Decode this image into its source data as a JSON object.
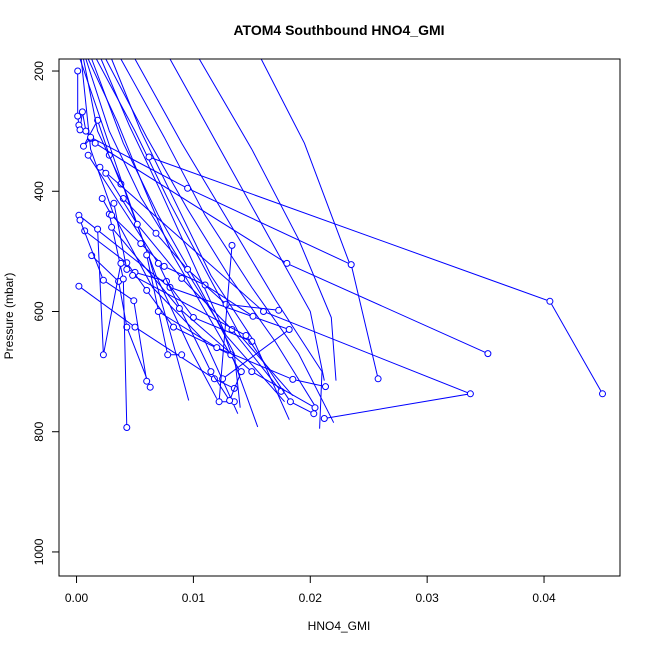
{
  "chart_data": {
    "type": "line",
    "title": "ATOM4 Southbound HNO4_GMI",
    "xlabel": "HNO4_GMI",
    "ylabel": "Pressure (mbar)",
    "xlim": [
      -0.0015,
      0.0465
    ],
    "ylim": [
      1040,
      180
    ],
    "y_reversed": true,
    "xticks": [
      0.0,
      0.01,
      0.02,
      0.03,
      0.04
    ],
    "xtick_labels": [
      "0.00",
      "0.01",
      "0.02",
      "0.03",
      "0.04"
    ],
    "yticks": [
      200,
      400,
      600,
      800,
      1000
    ],
    "ytick_labels": [
      "200",
      "400",
      "600",
      "800",
      "1000"
    ],
    "grid": false,
    "series_color": "#0000ff",
    "series": [
      {
        "marker": "circle",
        "points": [
          [
            0.0001,
            200
          ],
          [
            0.0001,
            275
          ],
          [
            0.0002,
            290
          ],
          [
            0.0003,
            298
          ],
          [
            0.0005,
            268
          ],
          [
            0.0008,
            300
          ],
          [
            0.0012,
            312
          ],
          [
            0.0006,
            325
          ],
          [
            0.0018,
            282
          ],
          [
            0.0028,
            340
          ],
          [
            0.0038,
            388
          ]
        ]
      },
      {
        "marker": "none",
        "points": [
          [
            0.0003,
            180
          ],
          [
            0.0024,
            300
          ],
          [
            0.0045,
            420
          ],
          [
            0.0068,
            540
          ],
          [
            0.0098,
            665
          ],
          [
            0.012,
            745
          ]
        ]
      },
      {
        "marker": "none",
        "points": [
          [
            0.001,
            180
          ],
          [
            0.0035,
            285
          ],
          [
            0.0058,
            395
          ],
          [
            0.0082,
            505
          ],
          [
            0.0112,
            605
          ],
          [
            0.014,
            700
          ]
        ]
      },
      {
        "marker": "none",
        "points": [
          [
            0.0017,
            180
          ],
          [
            0.005,
            300
          ],
          [
            0.008,
            420
          ],
          [
            0.011,
            530
          ],
          [
            0.014,
            640
          ],
          [
            0.0185,
            740
          ]
        ]
      },
      {
        "marker": "none",
        "points": [
          [
            0.0025,
            180
          ],
          [
            0.006,
            310
          ],
          [
            0.0095,
            430
          ],
          [
            0.013,
            540
          ],
          [
            0.017,
            650
          ],
          [
            0.0205,
            760
          ]
        ]
      },
      {
        "marker": "none",
        "points": [
          [
            0.0038,
            180
          ],
          [
            0.0075,
            310
          ],
          [
            0.011,
            440
          ],
          [
            0.015,
            560
          ],
          [
            0.019,
            670
          ],
          [
            0.022,
            785
          ]
        ]
      },
      {
        "marker": "none",
        "points": [
          [
            0.005,
            180
          ],
          [
            0.009,
            320
          ],
          [
            0.013,
            450
          ],
          [
            0.017,
            580
          ],
          [
            0.021,
            700
          ],
          [
            0.0208,
            795
          ]
        ]
      },
      {
        "marker": "none",
        "points": [
          [
            0.008,
            180
          ],
          [
            0.012,
            320
          ],
          [
            0.016,
            460
          ],
          [
            0.02,
            600
          ],
          [
            0.0212,
            715
          ]
        ]
      },
      {
        "marker": "none",
        "points": [
          [
            0.0105,
            180
          ],
          [
            0.015,
            330
          ],
          [
            0.019,
            480
          ],
          [
            0.0218,
            610
          ],
          [
            0.0222,
            715
          ]
        ]
      },
      {
        "marker": "none",
        "points": [
          [
            0.0158,
            180
          ],
          [
            0.0195,
            320
          ],
          [
            0.0234,
            522
          ]
        ]
      },
      {
        "marker": "none",
        "points": [
          [
            0.0004,
            180
          ],
          [
            0.0012,
            330
          ],
          [
            0.0032,
            440
          ],
          [
            0.0065,
            560
          ],
          [
            0.011,
            650
          ],
          [
            0.0138,
            770
          ]
        ]
      },
      {
        "marker": "none",
        "points": [
          [
            0.0008,
            180
          ],
          [
            0.0028,
            300
          ],
          [
            0.0055,
            410
          ],
          [
            0.009,
            520
          ],
          [
            0.0125,
            630
          ],
          [
            0.0155,
            792
          ]
        ]
      },
      {
        "marker": "none",
        "points": [
          [
            0.0013,
            180
          ],
          [
            0.004,
            320
          ],
          [
            0.007,
            440
          ],
          [
            0.0105,
            560
          ],
          [
            0.0135,
            670
          ],
          [
            0.014,
            760
          ]
        ]
      },
      {
        "marker": "none",
        "points": [
          [
            0.0021,
            180
          ],
          [
            0.0045,
            290
          ],
          [
            0.0072,
            400
          ],
          [
            0.01,
            520
          ],
          [
            0.0128,
            640
          ],
          [
            0.0178,
            750
          ]
        ]
      },
      {
        "marker": "none",
        "points": [
          [
            0.003,
            180
          ],
          [
            0.0055,
            300
          ],
          [
            0.0085,
            420
          ],
          [
            0.0115,
            540
          ],
          [
            0.0152,
            650
          ],
          [
            0.0182,
            780
          ]
        ]
      },
      {
        "marker": "none",
        "points": [
          [
            0.0006,
            180
          ],
          [
            0.0018,
            300
          ],
          [
            0.0042,
            400
          ],
          [
            0.0062,
            510
          ],
          [
            0.0078,
            620
          ],
          [
            0.0096,
            748
          ]
        ]
      },
      {
        "marker": "circle",
        "points": [
          [
            0.0012,
            310
          ],
          [
            0.0095,
            395
          ],
          [
            0.0235,
            522
          ],
          [
            0.0258,
            712
          ]
        ]
      },
      {
        "marker": "circle",
        "points": [
          [
            0.0062,
            343
          ],
          [
            0.0405,
            583
          ],
          [
            0.045,
            737
          ]
        ]
      },
      {
        "marker": "circle",
        "points": [
          [
            0.0016,
            320
          ],
          [
            0.018,
            520
          ],
          [
            0.0352,
            670
          ]
        ]
      },
      {
        "marker": "circle",
        "points": [
          [
            0.002,
            360
          ],
          [
            0.016,
            600
          ],
          [
            0.0337,
            737
          ],
          [
            0.0212,
            778
          ]
        ]
      },
      {
        "marker": "circle",
        "points": [
          [
            0.0002,
            440
          ],
          [
            0.008,
            560
          ],
          [
            0.0182,
            630
          ],
          [
            0.0125,
            712
          ]
        ]
      },
      {
        "marker": "circle",
        "points": [
          [
            0.0002,
            558
          ],
          [
            0.005,
            626
          ],
          [
            0.0118,
            712
          ],
          [
            0.0135,
            728
          ]
        ]
      },
      {
        "marker": "circle",
        "points": [
          [
            0.0007,
            466
          ],
          [
            0.0043,
            519
          ],
          [
            0.006,
            565
          ],
          [
            0.0083,
            626
          ],
          [
            0.0132,
            672
          ]
        ]
      },
      {
        "marker": "circle",
        "points": [
          [
            0.0013,
            507
          ],
          [
            0.0036,
            550
          ],
          [
            0.0043,
            626
          ],
          [
            0.0063,
            726
          ]
        ]
      },
      {
        "marker": "circle",
        "points": [
          [
            0.0028,
            438
          ],
          [
            0.004,
            546
          ],
          [
            0.0043,
            793
          ]
        ]
      },
      {
        "marker": "circle",
        "points": [
          [
            0.0003,
            448
          ],
          [
            0.0023,
            548
          ],
          [
            0.0049,
            582
          ],
          [
            0.006,
            716
          ]
        ]
      },
      {
        "marker": "circle",
        "points": [
          [
            0.0022,
            412
          ],
          [
            0.003,
            440
          ],
          [
            0.0055,
            487
          ],
          [
            0.0075,
            525
          ],
          [
            0.011,
            556
          ],
          [
            0.0151,
            608
          ]
        ]
      },
      {
        "marker": "circle",
        "points": [
          [
            0.004,
            412
          ],
          [
            0.0068,
            470
          ],
          [
            0.0095,
            530
          ],
          [
            0.0128,
            588
          ],
          [
            0.0173,
            598
          ]
        ]
      },
      {
        "marker": "circle",
        "points": [
          [
            0.0025,
            370
          ],
          [
            0.0052,
            455
          ],
          [
            0.009,
            545
          ],
          [
            0.0133,
            630
          ],
          [
            0.0175,
            733
          ]
        ]
      },
      {
        "marker": "circle",
        "points": [
          [
            0.0032,
            420
          ],
          [
            0.0043,
            530
          ],
          [
            0.005,
            535
          ],
          [
            0.0077,
            550
          ],
          [
            0.01,
            610
          ],
          [
            0.015,
            650
          ]
        ]
      },
      {
        "marker": "circle",
        "points": [
          [
            0.006,
            506
          ],
          [
            0.0078,
            672
          ],
          [
            0.009,
            672
          ]
        ]
      },
      {
        "marker": "circle",
        "points": [
          [
            0.0018,
            463
          ],
          [
            0.0023,
            672
          ],
          [
            0.0038,
            520
          ]
        ]
      },
      {
        "marker": "circle",
        "points": [
          [
            0.0133,
            490
          ],
          [
            0.0122,
            750
          ],
          [
            0.0135,
            750
          ]
        ]
      },
      {
        "marker": "circle",
        "points": [
          [
            0.001,
            340
          ],
          [
            0.007,
            520
          ],
          [
            0.0115,
            700
          ],
          [
            0.0131,
            748
          ],
          [
            0.0141,
            700
          ]
        ]
      },
      {
        "marker": "circle",
        "points": [
          [
            0.0048,
            540
          ],
          [
            0.0145,
            640
          ],
          [
            0.0183,
            750
          ],
          [
            0.0203,
            770
          ]
        ]
      },
      {
        "marker": "circle",
        "points": [
          [
            0.003,
            460
          ],
          [
            0.0088,
            595
          ],
          [
            0.015,
            700
          ],
          [
            0.0204,
            760
          ]
        ]
      },
      {
        "marker": "circle",
        "points": [
          [
            0.007,
            600
          ],
          [
            0.012,
            660
          ],
          [
            0.0185,
            713
          ],
          [
            0.0213,
            725
          ]
        ]
      }
    ]
  }
}
